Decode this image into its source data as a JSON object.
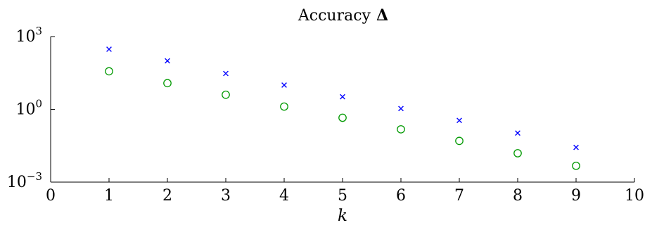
{
  "chart_data": {
    "type": "scatter",
    "title": "Accuracy",
    "title_symbol": "Δ",
    "xlabel": "k",
    "ylabel": "",
    "xlim": [
      0,
      10
    ],
    "ylim": [
      0.001,
      1000
    ],
    "y_scale": "log",
    "grid": false,
    "x_ticks": [
      "0",
      "1",
      "2",
      "3",
      "4",
      "5",
      "6",
      "7",
      "8",
      "9",
      "10"
    ],
    "y_ticks": [
      {
        "base": "10",
        "exp": "3",
        "value": 1000
      },
      {
        "base": "10",
        "exp": "0",
        "value": 1
      },
      {
        "base": "10",
        "exp": "−3",
        "value": 0.001
      }
    ],
    "series": [
      {
        "marker": "cross",
        "color": "#0000ff",
        "x": [
          1,
          2,
          3,
          4,
          5,
          6,
          7,
          8,
          9
        ],
        "values": [
          300,
          100,
          30,
          10,
          3.3,
          1.08,
          0.35,
          0.105,
          0.027
        ]
      },
      {
        "marker": "circle",
        "color": "#009900",
        "x": [
          1,
          2,
          3,
          4,
          5,
          6,
          7,
          8,
          9
        ],
        "values": [
          37,
          12,
          4,
          1.3,
          0.45,
          0.15,
          0.05,
          0.0155,
          0.0047
        ]
      }
    ]
  }
}
